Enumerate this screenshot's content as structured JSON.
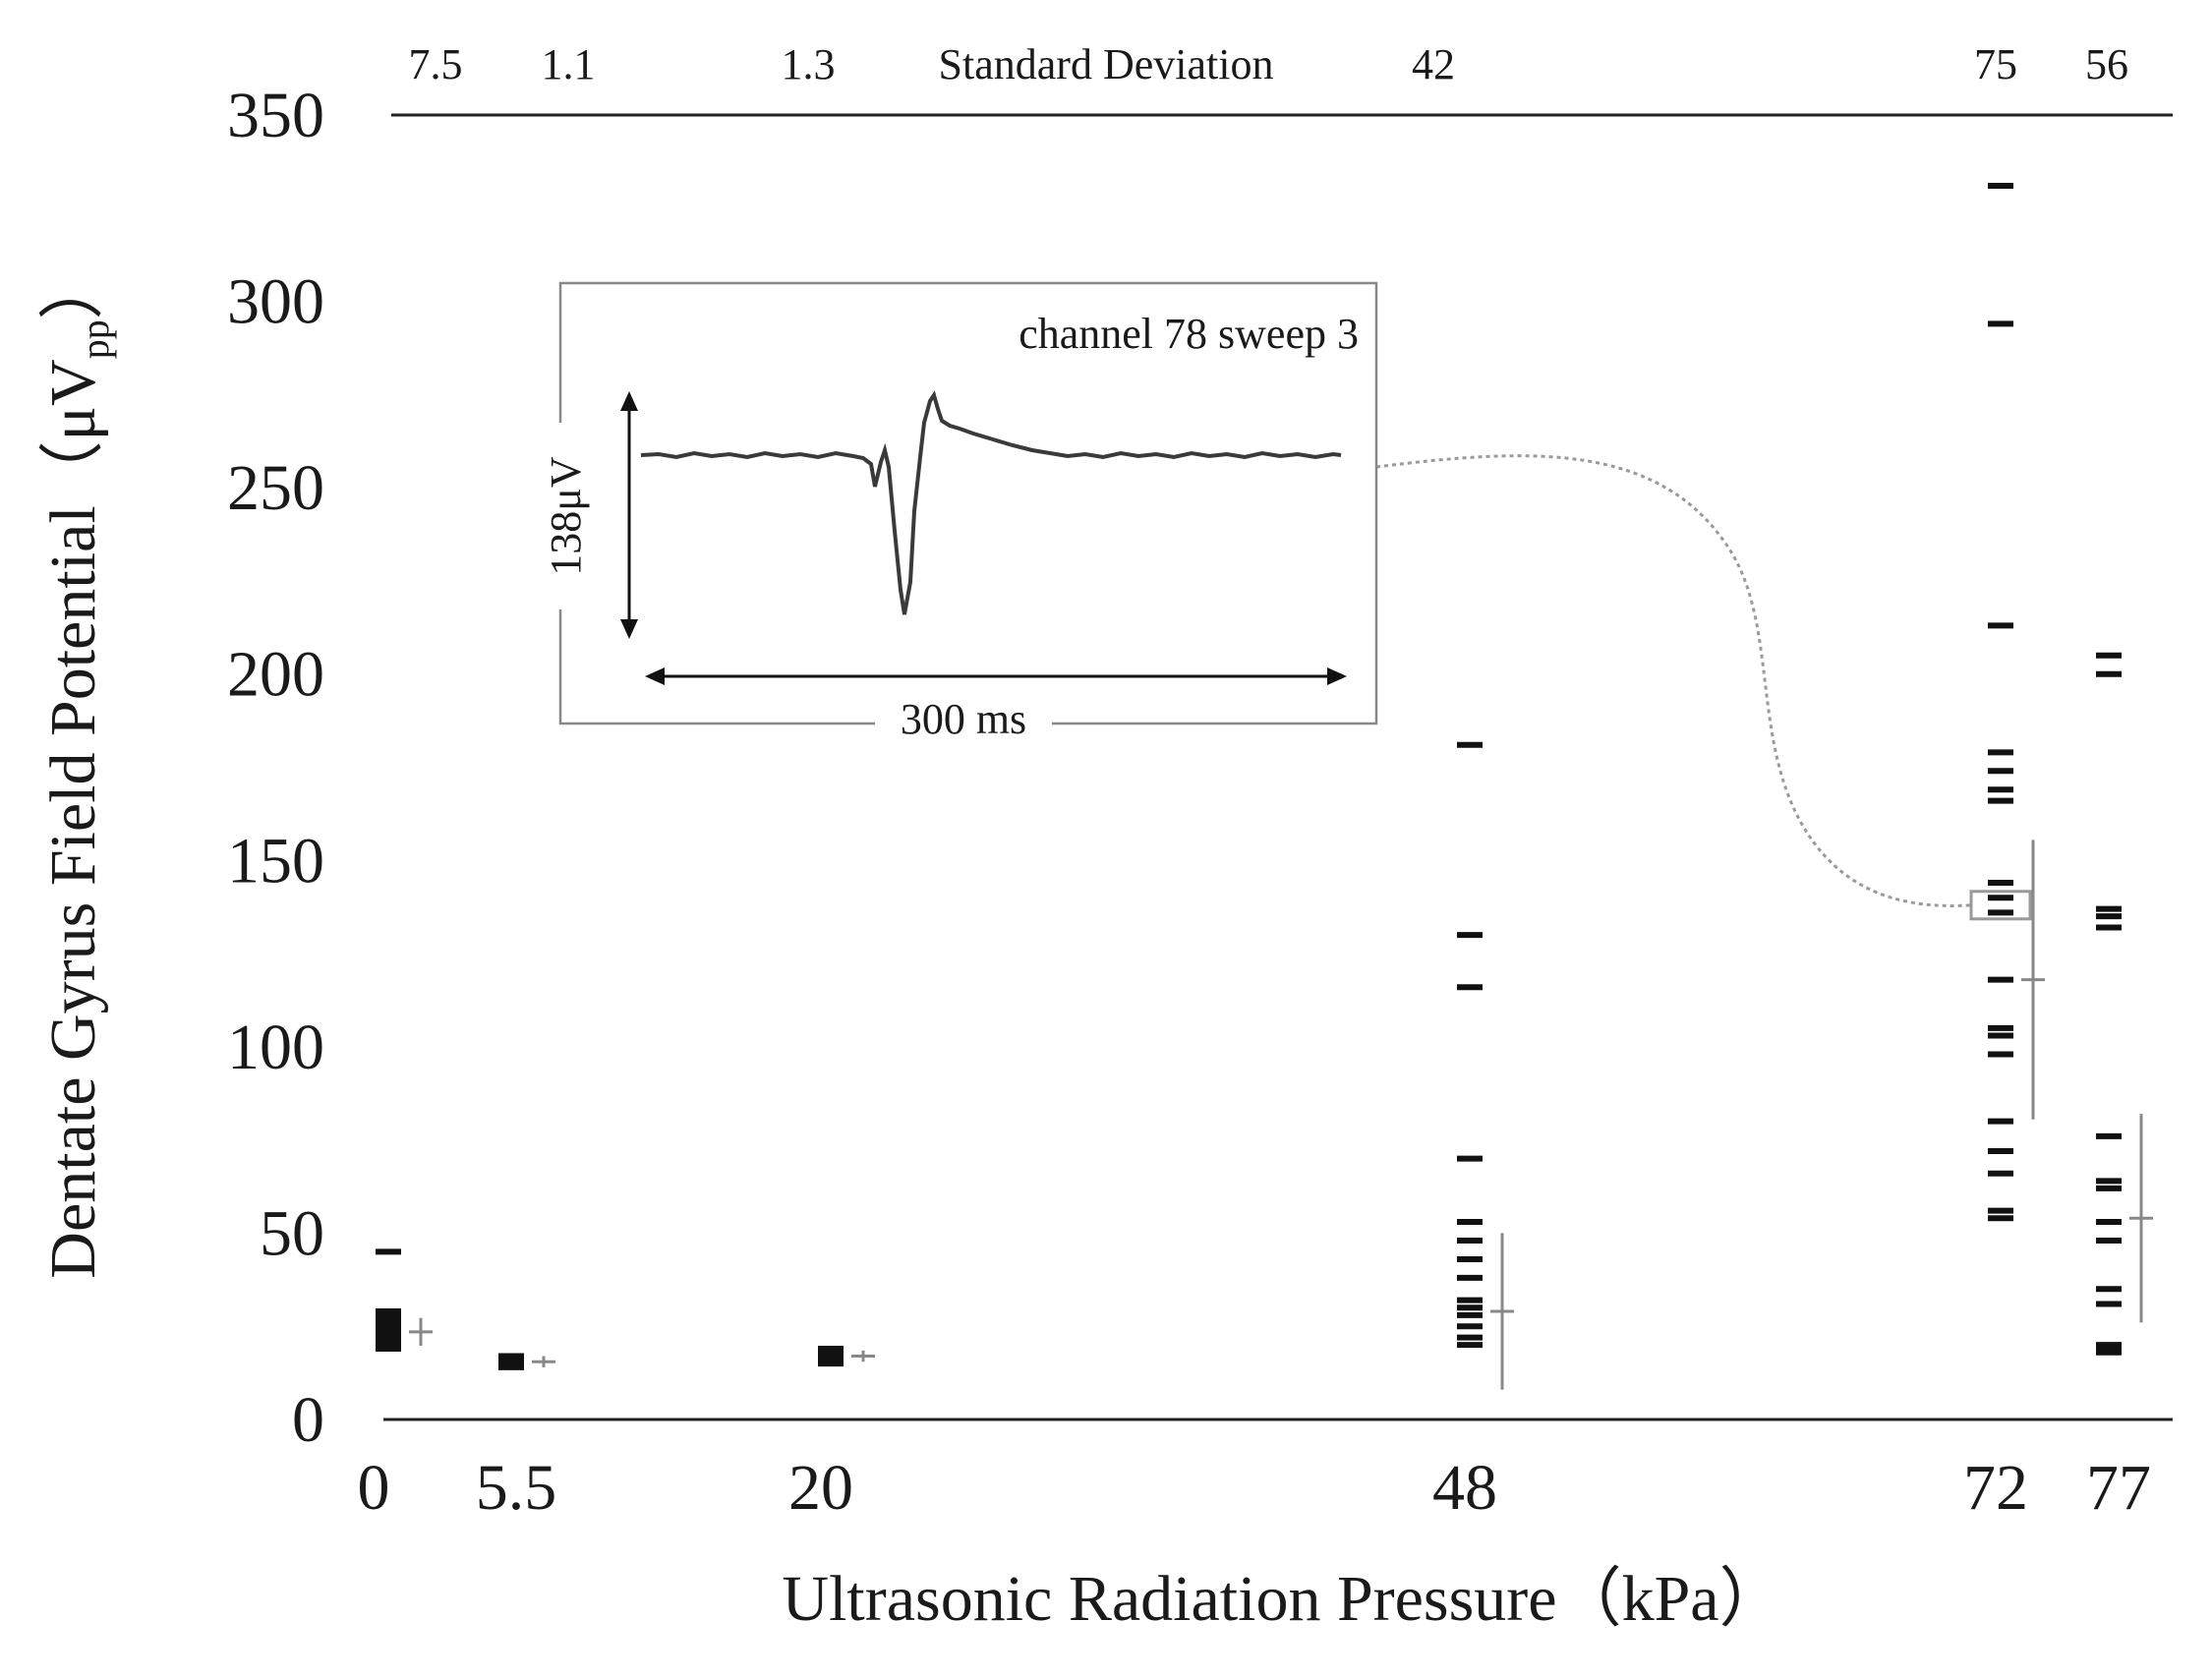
{
  "chart_data": {
    "type": "scatter",
    "title": "",
    "xlabel": "Ultrasonic Radiation Pressure（kPa）",
    "ylabel_main": "Dentate Gyrus Field Potential（μV",
    "ylabel_sub": "pp",
    "ylabel_close": "）",
    "ylim": [
      0,
      350
    ],
    "y_ticks": [
      "0",
      "50",
      "100",
      "150",
      "200",
      "250",
      "300",
      "350"
    ],
    "x_tick_labels": [
      "0",
      "5.5",
      "20",
      "48",
      "72",
      "77"
    ],
    "sd_header": "Standard Deviation",
    "sd_labels": [
      "7.5",
      "1.1",
      "1.3",
      "42",
      "75",
      "56"
    ],
    "series": [
      {
        "name": "0 kPa",
        "x": 0,
        "values": [
          45,
          29,
          28,
          27,
          26,
          25,
          24,
          23,
          22,
          21,
          20,
          19
        ],
        "mean": 23.5,
        "sd": 7.5
      },
      {
        "name": "5.5 kPa",
        "x": 5.5,
        "values": [
          17,
          16,
          15,
          14
        ],
        "mean": 15.5,
        "sd": 1.1
      },
      {
        "name": "20 kPa",
        "x": 20,
        "values": [
          19,
          18,
          17,
          16,
          15
        ],
        "mean": 17,
        "sd": 1.3
      },
      {
        "name": "48 kPa",
        "x": 48,
        "values": [
          181,
          130,
          116,
          70,
          53,
          48,
          43,
          38,
          32,
          30,
          28,
          25,
          22,
          20
        ],
        "mean": 29,
        "sd": 42
      },
      {
        "name": "72 kPa",
        "x": 72,
        "values": [
          331,
          294,
          213,
          179,
          174,
          169,
          166,
          144,
          140,
          136,
          118,
          105,
          103,
          98,
          80,
          72,
          66,
          56,
          54
        ],
        "mean": 118,
        "sd": 75
      },
      {
        "name": "77 kPa",
        "x": 77,
        "values": [
          205,
          200,
          137,
          135,
          132,
          76,
          64,
          62,
          53,
          48,
          35,
          31,
          20,
          19,
          18
        ],
        "mean": 54,
        "sd": 56
      }
    ],
    "highlighted_point": {
      "x": 72,
      "value": 138
    },
    "inset": {
      "title": "channel 78 sweep 3",
      "amplitude_label": "138μV",
      "duration_label": "300 ms"
    }
  }
}
